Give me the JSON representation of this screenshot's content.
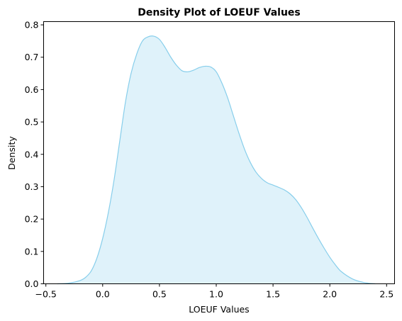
{
  "chart_data": {
    "type": "area",
    "title": "Density Plot of LOEUF Values",
    "xlabel": "LOEUF Values",
    "ylabel": "Density",
    "xlim": [
      -0.52,
      2.57
    ],
    "ylim": [
      0,
      0.81
    ],
    "xticks": [
      -0.5,
      0.0,
      0.5,
      1.0,
      1.5,
      2.0,
      2.5
    ],
    "xtick_labels": [
      "−0.5",
      "0.0",
      "0.5",
      "1.0",
      "1.5",
      "2.0",
      "2.5"
    ],
    "yticks": [
      0.0,
      0.1,
      0.2,
      0.3,
      0.4,
      0.5,
      0.6,
      0.7,
      0.8
    ],
    "ytick_labels": [
      "0.0",
      "0.1",
      "0.2",
      "0.3",
      "0.4",
      "0.5",
      "0.6",
      "0.7",
      "0.8"
    ],
    "grid": false,
    "legend": false,
    "line_color": "#87CEEB",
    "fill_color": "#DFF2FA",
    "x": [
      -0.4,
      -0.3,
      -0.2,
      -0.15,
      -0.1,
      -0.05,
      0.0,
      0.05,
      0.1,
      0.15,
      0.2,
      0.25,
      0.3,
      0.35,
      0.4,
      0.45,
      0.5,
      0.55,
      0.6,
      0.65,
      0.7,
      0.75,
      0.8,
      0.85,
      0.9,
      0.95,
      1.0,
      1.05,
      1.1,
      1.15,
      1.2,
      1.25,
      1.3,
      1.35,
      1.4,
      1.45,
      1.5,
      1.55,
      1.6,
      1.65,
      1.7,
      1.75,
      1.8,
      1.85,
      1.9,
      1.95,
      2.0,
      2.05,
      2.1,
      2.2,
      2.3,
      2.4
    ],
    "y": [
      0.0,
      0.002,
      0.01,
      0.02,
      0.04,
      0.08,
      0.14,
      0.22,
      0.32,
      0.44,
      0.56,
      0.65,
      0.71,
      0.75,
      0.763,
      0.765,
      0.755,
      0.73,
      0.7,
      0.675,
      0.658,
      0.655,
      0.66,
      0.668,
      0.672,
      0.67,
      0.655,
      0.62,
      0.575,
      0.52,
      0.465,
      0.415,
      0.375,
      0.345,
      0.325,
      0.312,
      0.305,
      0.298,
      0.29,
      0.278,
      0.26,
      0.235,
      0.205,
      0.172,
      0.14,
      0.11,
      0.082,
      0.058,
      0.038,
      0.015,
      0.004,
      0.0
    ]
  }
}
